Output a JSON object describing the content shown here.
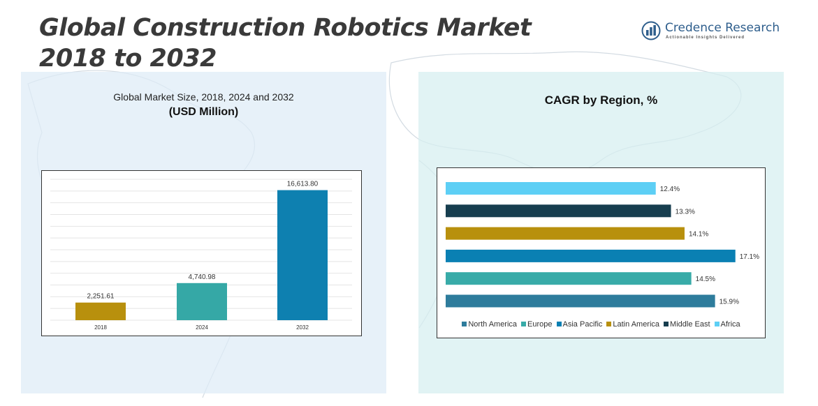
{
  "header": {
    "title_line1": "Global Construction Robotics Market",
    "title_line2": "2018 to 2032"
  },
  "logo": {
    "name": "Credence Research",
    "tagline": "Actionable Insights Delivered",
    "icon": "bar-chart-logo-icon"
  },
  "colors": {
    "bar_2018": "#b8900d",
    "bar_2024": "#35a8a6",
    "bar_2032": "#0e80b0",
    "north_america": "#2e7c9c",
    "europe": "#38aba8",
    "asia_pacific": "#0a80b3",
    "latin_america": "#b8900d",
    "middle_east": "#173e4f",
    "africa": "#5dcff5"
  },
  "chart_data": [
    {
      "type": "bar",
      "title": "Global Market Size, 2018, 2024 and 2032",
      "subtitle": "(USD Million)",
      "categories": [
        "2018",
        "2024",
        "2032"
      ],
      "values": [
        2251.61,
        4740.98,
        16613.8
      ],
      "value_labels": [
        "2,251.61",
        "4,740.98",
        "16,613.80"
      ],
      "ylim": [
        0,
        18000
      ],
      "grid": true,
      "xlabel": "",
      "ylabel": ""
    },
    {
      "type": "bar",
      "orientation": "horizontal",
      "title": "CAGR by Region, %",
      "categories": [
        "North America",
        "Europe",
        "Asia Pacific",
        "Latin America",
        "Middle East",
        "Africa"
      ],
      "values": [
        15.9,
        14.5,
        17.1,
        14.1,
        13.3,
        12.4
      ],
      "value_labels": [
        "15.9%",
        "14.5%",
        "17.1%",
        "14.1%",
        "13.3%",
        "12.4%"
      ],
      "xlim": [
        0,
        17.4
      ],
      "grid": false,
      "legend": "bottom"
    }
  ]
}
